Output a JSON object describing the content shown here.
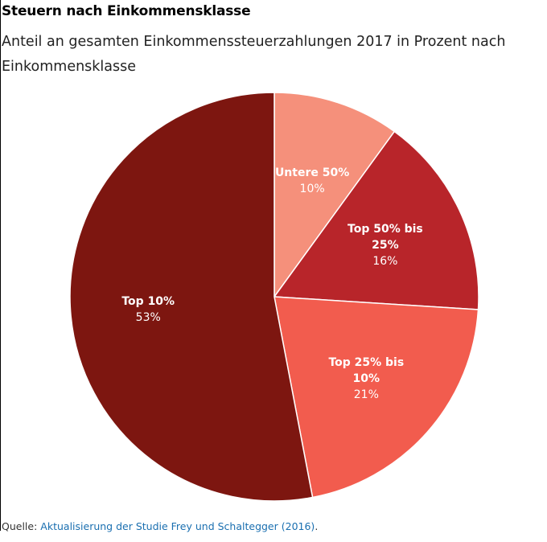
{
  "header": {
    "title": "Steuern nach Einkommensklasse",
    "subtitle": "Anteil an gesamten Einkommenssteuerzahlungen 2017 in Prozent nach Einkommensklasse"
  },
  "source": {
    "label": "Quelle:",
    "link_text": "Aktualisierung der Studie Frey und Schaltegger (2016)",
    "trailing": "."
  },
  "chart_data": {
    "type": "pie",
    "title": "Steuern nach Einkommensklasse",
    "subtitle": "Anteil an gesamten Einkommenssteuerzahlungen 2017 in Prozent nach Einkommensklasse",
    "start_angle_deg": 0,
    "direction": "clockwise",
    "slices": [
      {
        "label": "Untere 50%",
        "label_lines": [
          "Untere 50%"
        ],
        "value": 10,
        "value_label": "10%",
        "color": "#f5907b",
        "label_color": "#ffffff"
      },
      {
        "label": "Top 50% bis 25%",
        "label_lines": [
          "Top 50% bis",
          "25%"
        ],
        "value": 16,
        "value_label": "16%",
        "color": "#b8252a",
        "label_color": "#ffffff"
      },
      {
        "label": "Top 25% bis 10%",
        "label_lines": [
          "Top 25% bis",
          "10%"
        ],
        "value": 21,
        "value_label": "21%",
        "color": "#f25c4e",
        "label_color": "#ffffff"
      },
      {
        "label": "Top 10%",
        "label_lines": [
          "Top 10%"
        ],
        "value": 53,
        "value_label": "53%",
        "color": "#7d1610",
        "label_color": "#ffffff"
      }
    ]
  }
}
